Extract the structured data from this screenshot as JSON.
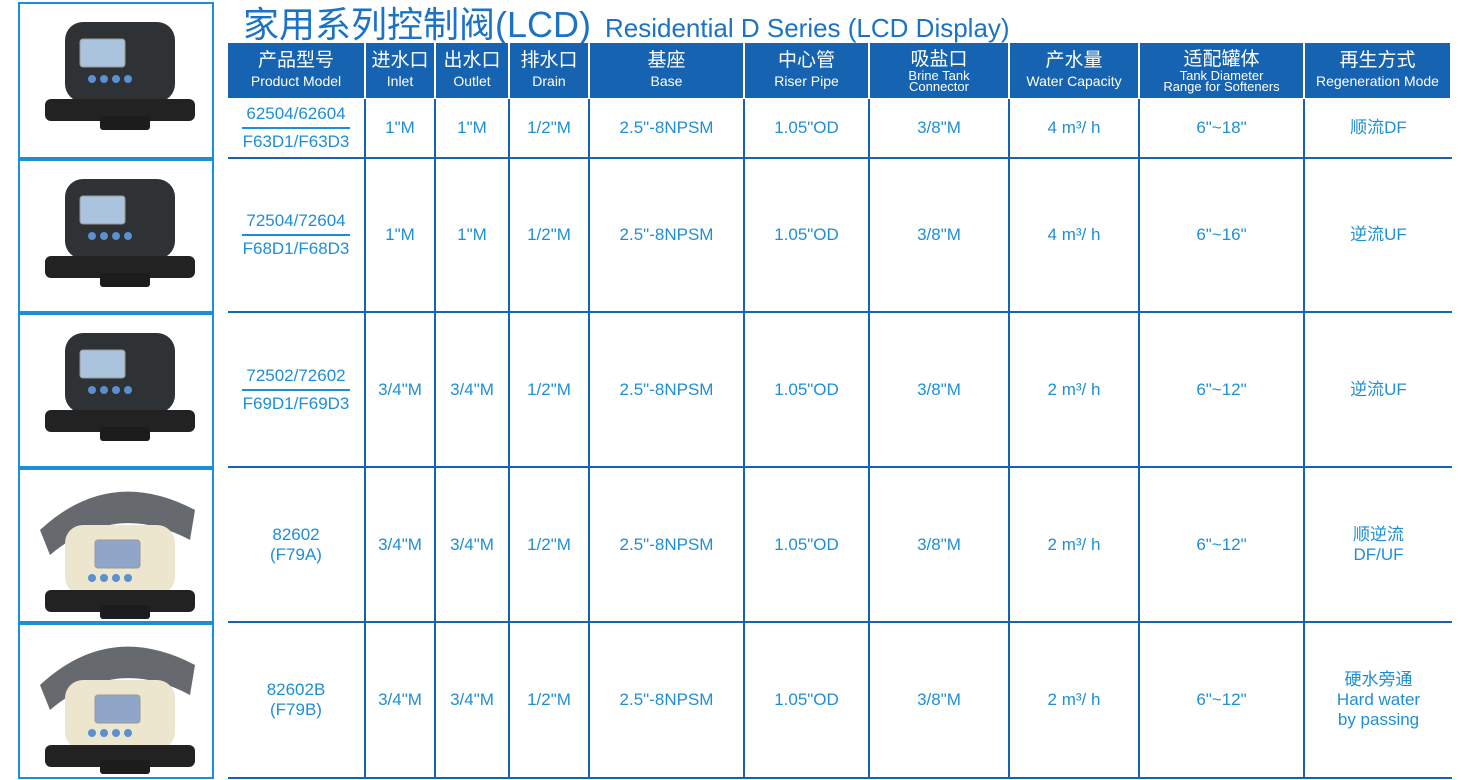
{
  "title": {
    "zh": "家用系列控制阀(LCD)",
    "en": "Residential  D Series (LCD Display)"
  },
  "header": [
    {
      "zh": "产品型号",
      "en": [
        "Product Model"
      ]
    },
    {
      "zh": "进水口",
      "en": [
        "Inlet"
      ]
    },
    {
      "zh": "出水口",
      "en": [
        "Outlet"
      ]
    },
    {
      "zh": "排水口",
      "en": [
        "Drain"
      ]
    },
    {
      "zh": "基座",
      "en": [
        "Base"
      ]
    },
    {
      "zh": "中心管",
      "en": [
        "Riser Pipe"
      ]
    },
    {
      "zh": "吸盐口",
      "en": [
        "Brine Tank",
        "Connector"
      ]
    },
    {
      "zh": "产水量",
      "en": [
        "Water Capacity"
      ]
    },
    {
      "zh": "适配罐体",
      "en": [
        "Tank Diameter",
        "Range for Softeners"
      ]
    },
    {
      "zh": "再生方式",
      "en": [
        "Regeneration Mode"
      ]
    }
  ],
  "rows": [
    {
      "cells": [
        [
          "62504/62604",
          "F63D1/F63D3"
        ],
        "1\"M",
        "1\"M",
        "1/2\"M",
        "2.5\"-8NPSM",
        "1.05\"OD",
        "3/8\"M",
        "4 m³/ h",
        "6\"~18\"",
        [
          "顺流DF"
        ]
      ]
    },
    {
      "cells": [
        [
          "72504/72604",
          "F68D1/F68D3"
        ],
        "1\"M",
        "1\"M",
        "1/2\"M",
        "2.5\"-8NPSM",
        "1.05\"OD",
        "3/8\"M",
        "4 m³/ h",
        "6\"~16\"",
        [
          "逆流UF"
        ]
      ]
    },
    {
      "cells": [
        [
          "72502/72602",
          "F69D1/F69D3"
        ],
        "3/4\"M",
        "3/4\"M",
        "1/2\"M",
        "2.5\"-8NPSM",
        "1.05\"OD",
        "3/8\"M",
        "2 m³/ h",
        "6\"~12\"",
        [
          "逆流UF"
        ]
      ]
    },
    {
      "cells": [
        [
          "82602",
          "(F79A)"
        ],
        "3/4\"M",
        "3/4\"M",
        "1/2\"M",
        "2.5\"-8NPSM",
        "1.05\"OD",
        "3/8\"M",
        "2 m³/ h",
        "6\"~12\"",
        [
          "顺逆流",
          "DF/UF"
        ]
      ]
    },
    {
      "cells": [
        [
          "82602B",
          "(F79B)"
        ],
        "3/4\"M",
        "3/4\"M",
        "1/2\"M",
        "2.5\"-8NPSM",
        "1.05\"OD",
        "3/8\"M",
        "2 m³/ h",
        "6\"~12\"",
        [
          "硬水旁通",
          "Hard  water",
          "by passing"
        ]
      ]
    }
  ]
}
